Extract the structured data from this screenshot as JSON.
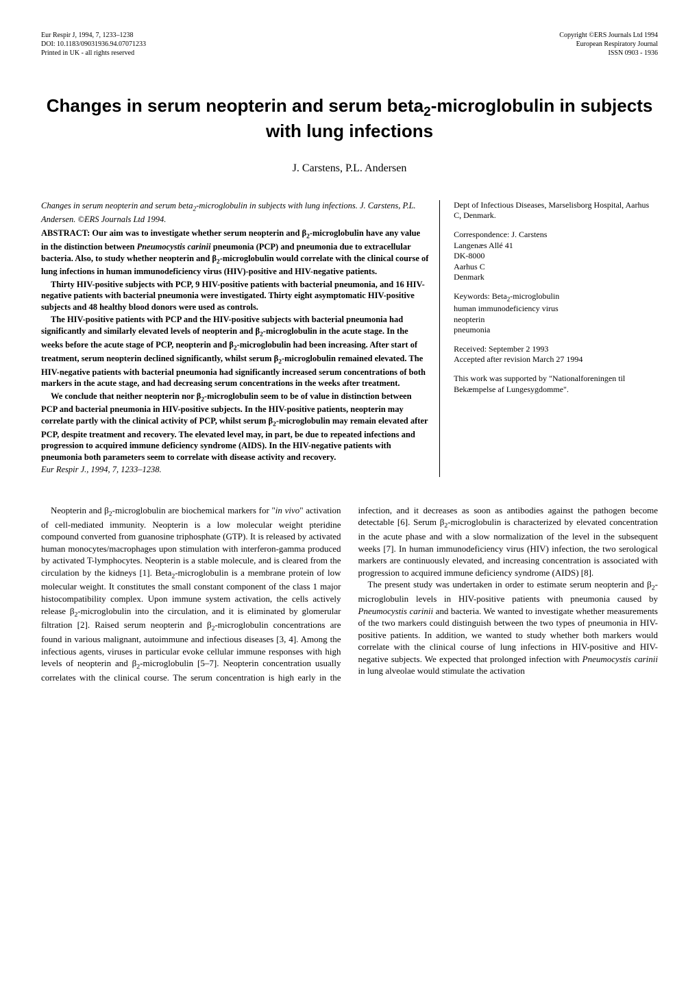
{
  "header": {
    "left": {
      "line1": "Eur Respir J, 1994, 7, 1233–1238",
      "line2": "DOI: 10.1183/09031936.94.07071233",
      "line3": "Printed in UK - all rights reserved"
    },
    "right": {
      "line1": "Copyright ©ERS Journals Ltd 1994",
      "line2": "European Respiratory Journal",
      "line3": "ISSN 0903 - 1936"
    }
  },
  "title_html": "Changes in serum neopterin and serum beta<sub>2</sub>-microglobulin in subjects with lung infections",
  "authors": "J. Carstens, P.L. Andersen",
  "abstract": {
    "citation_html": "Changes in serum neopterin and serum beta<sub>2</sub>-microglobulin in subjects with lung infections.  J. Carstens, P.L. Andersen.  ©ERS Journals Ltd 1994.",
    "p1_html": "ABSTRACT: Our aim was to investigate whether serum neopterin and β<sub>2</sub>-microglobulin have any value in the distinction between <i>Pneumocystis carinii</i> pneumonia (PCP) and pneumonia due to extracellular bacteria.  Also, to study whether neopterin and β<sub>2</sub>-microglobulin would correlate with the clinical course of lung infections in human immunodeficiency virus (HIV)-positive and HIV-negative patients.",
    "p2_html": "Thirty HIV-positive subjects with PCP, 9 HIV-positive patients with bacterial pneumonia, and 16 HIV-negative patients with bacterial pneumonia were investigated.  Thirty eight asymptomatic HIV-positive subjects and 48 healthy blood donors were used as controls.",
    "p3_html": "The HIV-positive patients with PCP and the HIV-positive subjects with bacterial pneumonia had significantly and similarly elevated levels of neopterin and β<sub>2</sub>-microglobulin in the acute stage.  In the weeks before the acute stage of PCP, neopterin and β<sub>2</sub>-microglobulin had been increasing.  After start of treatment, serum neopterin declined significantly, whilst serum β<sub>2</sub>-microglobulin remained elevated.  The HIV-negative patients with bacterial pneumonia had significantly increased serum concentrations of both markers in the acute stage, and had decreasing serum concentrations in the weeks after treatment.",
    "p4_html": "We conclude that neither neopterin nor β<sub>2</sub>-microglobulin seem to be of value in distinction between PCP and bacterial pneumonia in HIV-positive subjects.  In the HIV-positive patients, neopterin may correlate partly with the clinical activity of PCP, whilst serum β<sub>2</sub>-microglobulin may remain elevated after PCP, despite treatment and recovery.  The elevated level may, in part, be due to repeated infections and progression to acquired immune deficiency syndrome (AIDS).  In the HIV-negative patients with pneumonia both parameters seem to correlate with disease activity and recovery.",
    "journal": "Eur Respir J., 1994, 7, 1233–1238."
  },
  "side": {
    "affil": "Dept of Infectious Diseases, Marselisborg Hospital, Aarhus C, Denmark.",
    "corr_html": "Correspondence: J. Carstens<br>Langenæs Allé 41<br>DK-8000<br>Aarhus C<br>Denmark",
    "keywords_html": "Keywords: Beta<sub>2</sub>-microglobulin<br>human immunodeficiency virus<br>neopterin<br>pneumonia",
    "received_html": "Received: September 2 1993<br>Accepted after revision March 27 1994",
    "support": "This work was supported by \"Nationalforeningen til Bekæmpelse af Lungesygdomme\"."
  },
  "body": {
    "p1_html": "Neopterin and β<sub>2</sub>-microglobulin are biochemical markers for \"<i>in vivo</i>\" activation of cell-mediated immunity.  Neopterin is a low molecular weight pteridine compound converted from guanosine triphosphate (GTP).  It is released by activated human monocytes/macrophages upon stimulation with interferon-gamma produced by activated T-lymphocytes.  Neopterin is a stable molecule, and is cleared from the circulation by the kidneys [1].  Beta<sub>2</sub>-microglobulin is a membrane protein of low molecular weight.  It constitutes the small constant component of the class 1 major histocompatibility complex.  Upon immune system activation, the cells actively release β<sub>2</sub>-microglobulin into the circulation, and it is eliminated by glomerular filtration [2].  Raised serum neopterin and β<sub>2</sub>-microglobulin concentrations are found in various malignant, autoimmune and infectious diseases [3, 4].  Among the infectious agents, viruses in particular evoke cellular immune responses with high levels of neopterin and β<sub>2</sub>-microglobulin [5–7].  Neopterin concentration usually correlates with the clinical course.  The serum concentration is high early in the infection, and it decreases as soon as antibodies against the pathogen become detectable [6].  Serum β<sub>2</sub>-microglobulin is characterized by elevated concentration in the acute phase and with a slow normalization of the level in the subsequent weeks [7].  In human immunodeficiency virus (HIV) infection, the two serological markers are continuously elevated, and increasing concentration is associated with progression to acquired immune deficiency syndrome (AIDS) [8].",
    "p2_html": "The present study was undertaken in order to estimate serum neopterin and β<sub>2</sub>-microglobulin levels in HIV-positive patients with pneumonia caused by <i>Pneumocystis carinii</i> and bacteria.  We wanted to investigate whether measurements of the two markers could distinguish between the two types of pneumonia in HIV-positive patients.  In addition, we wanted to study whether both markers would correlate with the clinical course of lung infections in HIV-positive and HIV-negative subjects.  We expected that prolonged infection with <i>Pneumocystis carinii</i> in lung alveolae would stimulate the activation"
  }
}
